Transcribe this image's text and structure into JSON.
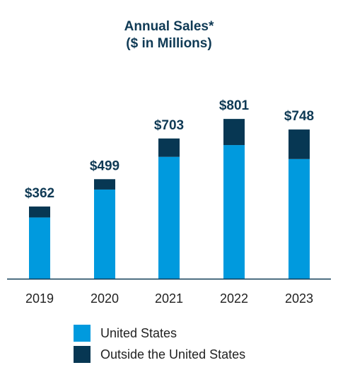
{
  "title": "Annual Sales*",
  "subtitle": "($ in Millions)",
  "colors": {
    "us": "#009ade",
    "outside": "#073753",
    "title": "#0f3a55",
    "axis": "#222222"
  },
  "chart_data": {
    "type": "bar",
    "stacked": true,
    "title": "Annual Sales*",
    "subtitle": "($ in Millions)",
    "categories": [
      "2019",
      "2020",
      "2021",
      "2022",
      "2023"
    ],
    "totals": [
      362,
      499,
      703,
      801,
      748
    ],
    "total_labels": [
      "$362",
      "$499",
      "$703",
      "$801",
      "$748"
    ],
    "series": [
      {
        "name": "United States",
        "values": [
          307,
          447,
          611,
          670,
          600
        ]
      },
      {
        "name": "Outside the United States",
        "values": [
          55,
          52,
          92,
          131,
          148
        ]
      }
    ],
    "ylim": [
      0,
      900
    ],
    "grid": false,
    "legend": "bottom"
  },
  "legend": [
    {
      "label": "United States"
    },
    {
      "label": "Outside the United States"
    }
  ]
}
